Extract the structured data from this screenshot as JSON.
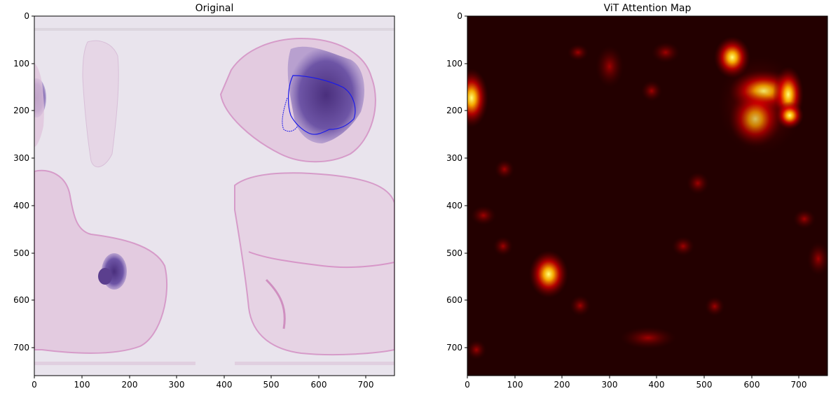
{
  "figure": {
    "panels": [
      {
        "id": "original",
        "title": "Original",
        "image_description": "H&E stained whole-slide tissue thumbnail with pink stromal tissue fragments and dark purple nodules; blue contour outlining a region in the upper-right nodule",
        "x_ticks": [
          "0",
          "100",
          "200",
          "300",
          "400",
          "500",
          "600",
          "700"
        ],
        "y_ticks": [
          "0",
          "100",
          "200",
          "300",
          "400",
          "500",
          "600",
          "700"
        ],
        "xlim": [
          0,
          760
        ],
        "ylim": [
          760,
          0
        ],
        "colors": {
          "background": "#e9e4ed",
          "tissue": "#d9a5cf",
          "nucleus_dark": "#5b3f8e",
          "contour": "#1b1be8"
        }
      },
      {
        "id": "attention",
        "title": "ViT Attention Map",
        "image_description": "Heatmap (hot colormap) of Vision Transformer attention over the slide; bright hotspots at upper-right region, left edge around y=170, and lower-left around (170, 550)",
        "x_ticks": [
          "0",
          "100",
          "200",
          "300",
          "400",
          "500",
          "600",
          "700"
        ],
        "y_ticks": [
          "0",
          "100",
          "200",
          "300",
          "400",
          "500",
          "600",
          "700"
        ],
        "xlim": [
          0,
          760
        ],
        "ylim": [
          760,
          0
        ],
        "colors": {
          "background": "#1f0000",
          "hot_mid": "#d60000",
          "hot_high": "#ff6a00",
          "hot_peak": "#ffff66"
        },
        "hotspots": [
          {
            "x": 10,
            "y": 165,
            "intensity": 1.0
          },
          {
            "x": 565,
            "y": 85,
            "intensity": 0.9
          },
          {
            "x": 670,
            "y": 160,
            "intensity": 1.0
          },
          {
            "x": 675,
            "y": 200,
            "intensity": 0.95
          },
          {
            "x": 610,
            "y": 180,
            "intensity": 0.8
          },
          {
            "x": 630,
            "y": 230,
            "intensity": 0.65
          },
          {
            "x": 175,
            "y": 545,
            "intensity": 1.0
          },
          {
            "x": 300,
            "y": 100,
            "intensity": 0.4
          },
          {
            "x": 700,
            "y": 140,
            "intensity": 0.75
          }
        ]
      }
    ]
  }
}
